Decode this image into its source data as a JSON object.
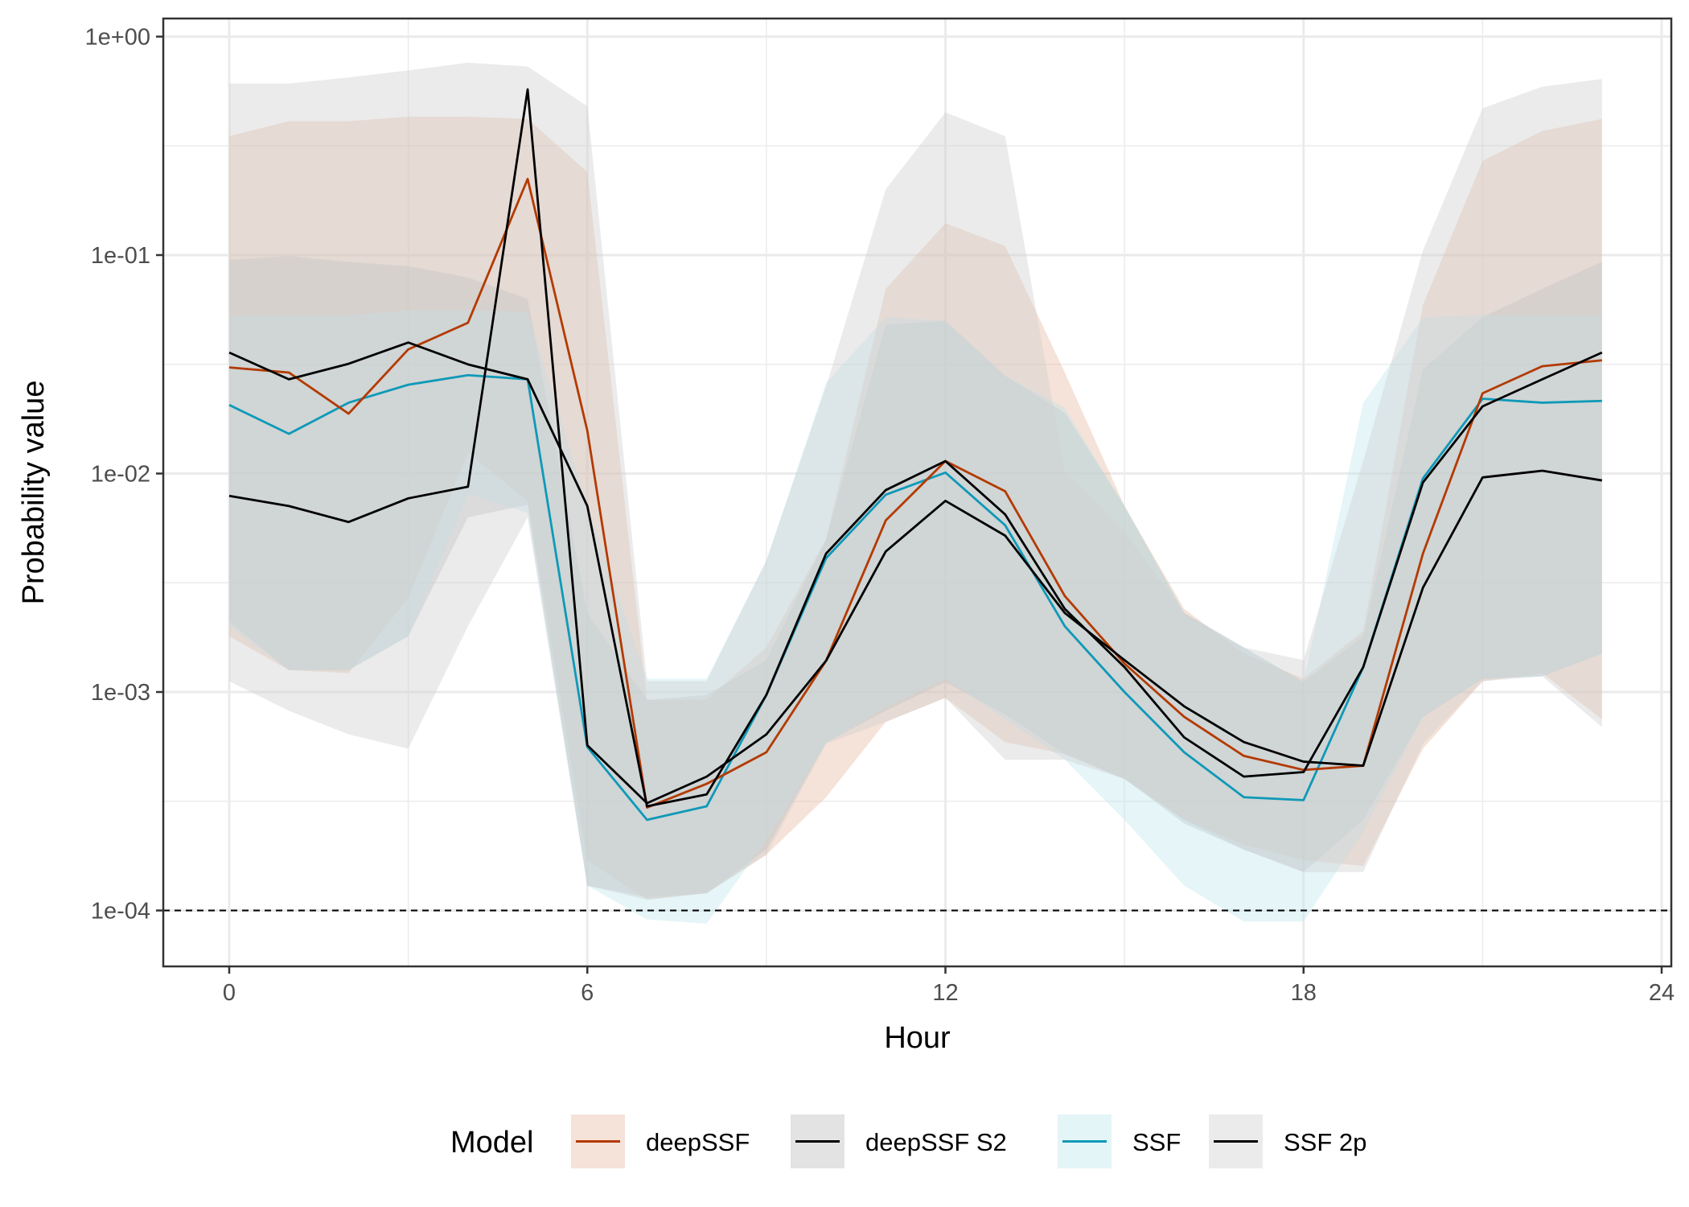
{
  "chart_data": {
    "type": "line",
    "title": "",
    "xlabel": "Hour",
    "ylabel": "Probability value",
    "x_scale": "linear",
    "y_scale": "log10",
    "xlim": [
      -1.1,
      24.2
    ],
    "ylim": [
      5e-05,
      1.2
    ],
    "x_ticks": [
      0,
      6,
      12,
      18,
      24
    ],
    "x_tick_labels": [
      "0",
      "6",
      "12",
      "18",
      "24"
    ],
    "y_ticks": [
      1,
      0.1,
      0.01,
      0.001,
      0.0001
    ],
    "y_tick_labels": [
      "1e+00",
      "1e-01",
      "1e-02",
      "1e-03",
      "1e-04"
    ],
    "grid": true,
    "reference_line": {
      "y": 0.0001,
      "style": "dashed"
    },
    "legend": {
      "title": "Model",
      "position": "bottom"
    },
    "x": [
      0,
      1,
      2,
      3,
      4,
      5,
      6,
      7,
      8,
      9,
      10,
      11,
      12,
      13,
      14,
      15,
      16,
      17,
      18,
      19,
      20,
      21,
      22,
      23
    ],
    "series": [
      {
        "name": "deepSSF",
        "line_color": "#B33A00",
        "ribbon_color": "#E8B9A3",
        "values": [
          0.0306,
          0.029,
          0.0188,
          0.037,
          0.049,
          0.223,
          0.0157,
          0.000296,
          0.00038,
          0.00053,
          0.00139,
          0.0061,
          0.0114,
          0.0083,
          0.00275,
          0.00135,
          0.00077,
          0.00051,
          0.00044,
          0.00046,
          0.0043,
          0.0233,
          0.031,
          0.033
        ],
        "upper": [
          0.35,
          0.41,
          0.41,
          0.43,
          0.43,
          0.42,
          0.24,
          0.00092,
          0.00092,
          0.0016,
          0.005,
          0.07,
          0.14,
          0.11,
          0.029,
          0.0071,
          0.0024,
          0.0015,
          0.00115,
          0.0019,
          0.059,
          0.27,
          0.37,
          0.42
        ],
        "lower": [
          0.0018,
          0.00126,
          0.00122,
          0.0027,
          0.0125,
          0.0075,
          0.00017,
          0.000112,
          0.00012,
          0.00018,
          0.00033,
          0.00073,
          0.00094,
          0.00059,
          0.00052,
          0.0004,
          0.00026,
          0.0002,
          0.00017,
          0.00016,
          0.00055,
          0.00112,
          0.00122,
          0.00075
        ]
      },
      {
        "name": "deepSSF S2",
        "line_color": "#000000",
        "ribbon_color": "#BDBDBD",
        "values": [
          0.0358,
          0.027,
          0.0318,
          0.0398,
          0.0316,
          0.027,
          0.0071,
          0.0003,
          0.00034,
          0.00097,
          0.0043,
          0.0084,
          0.0114,
          0.0065,
          0.0024,
          0.0013,
          0.00062,
          0.00041,
          0.00043,
          0.0013,
          0.0091,
          0.0203,
          0.027,
          0.0358
        ],
        "upper": [
          0.095,
          0.099,
          0.093,
          0.089,
          0.079,
          0.063,
          0.0023,
          0.00092,
          0.00097,
          0.0014,
          0.005,
          0.048,
          0.05,
          0.028,
          0.019,
          0.0071,
          0.0023,
          0.0016,
          0.00111,
          0.0018,
          0.03,
          0.052,
          0.07,
          0.093
        ],
        "lower": [
          0.0021,
          0.00126,
          0.00126,
          0.0018,
          0.0063,
          0.0072,
          0.00013,
          0.000115,
          0.00012,
          0.00019,
          0.00059,
          0.00082,
          0.00111,
          0.00079,
          0.00052,
          0.0004,
          0.00025,
          0.00019,
          0.00015,
          0.00026,
          0.00077,
          0.00115,
          0.00118,
          0.0015
        ]
      },
      {
        "name": "SSF",
        "line_color": "#0E99B8",
        "ribbon_color": "#BFE6EE",
        "values": [
          0.0206,
          0.0152,
          0.0211,
          0.0255,
          0.0282,
          0.027,
          0.00056,
          0.00026,
          0.0003,
          0.00097,
          0.0041,
          0.008,
          0.0101,
          0.0058,
          0.002,
          0.001,
          0.00053,
          0.00033,
          0.00032,
          0.0013,
          0.0095,
          0.022,
          0.0211,
          0.0215
        ],
        "upper": [
          0.053,
          0.053,
          0.053,
          0.056,
          0.056,
          0.055,
          0.0071,
          0.00115,
          0.00115,
          0.004,
          0.026,
          0.052,
          0.05,
          0.028,
          0.02,
          0.0071,
          0.0023,
          0.0016,
          0.00111,
          0.021,
          0.052,
          0.053,
          0.053,
          0.053
        ],
        "lower": [
          0.002,
          0.00126,
          0.00126,
          0.0018,
          0.0081,
          0.0066,
          0.00013,
          9.1e-05,
          8.7e-05,
          0.00021,
          0.00058,
          0.00085,
          0.00115,
          0.00075,
          0.00049,
          0.00026,
          0.00013,
          8.9e-05,
          8.9e-05,
          0.00023,
          0.00077,
          0.00115,
          0.00118,
          0.0015
        ]
      },
      {
        "name": "SSF 2p",
        "line_color": "#000000",
        "ribbon_color": "#CFCFCF",
        "values": [
          0.0079,
          0.0071,
          0.006,
          0.0077,
          0.0087,
          0.573,
          0.00057,
          0.00031,
          0.00041,
          0.00064,
          0.00139,
          0.0044,
          0.0075,
          0.0052,
          0.0023,
          0.0014,
          0.00086,
          0.00059,
          0.00048,
          0.00046,
          0.003,
          0.0096,
          0.0103,
          0.0093
        ],
        "upper": [
          0.61,
          0.61,
          0.65,
          0.7,
          0.76,
          0.73,
          0.48,
          0.00112,
          0.00112,
          0.004,
          0.025,
          0.2,
          0.45,
          0.35,
          0.0102,
          0.0054,
          0.0023,
          0.0016,
          0.0014,
          0.0114,
          0.105,
          0.47,
          0.59,
          0.64
        ],
        "lower": [
          0.00112,
          0.00082,
          0.00064,
          0.00055,
          0.002,
          0.0063,
          0.00013,
          0.000112,
          0.00012,
          0.00018,
          0.00058,
          0.00073,
          0.00094,
          0.00049,
          0.00049,
          0.0004,
          0.00026,
          0.00019,
          0.00015,
          0.00015,
          0.00058,
          0.00112,
          0.00118,
          0.00069
        ]
      }
    ]
  }
}
